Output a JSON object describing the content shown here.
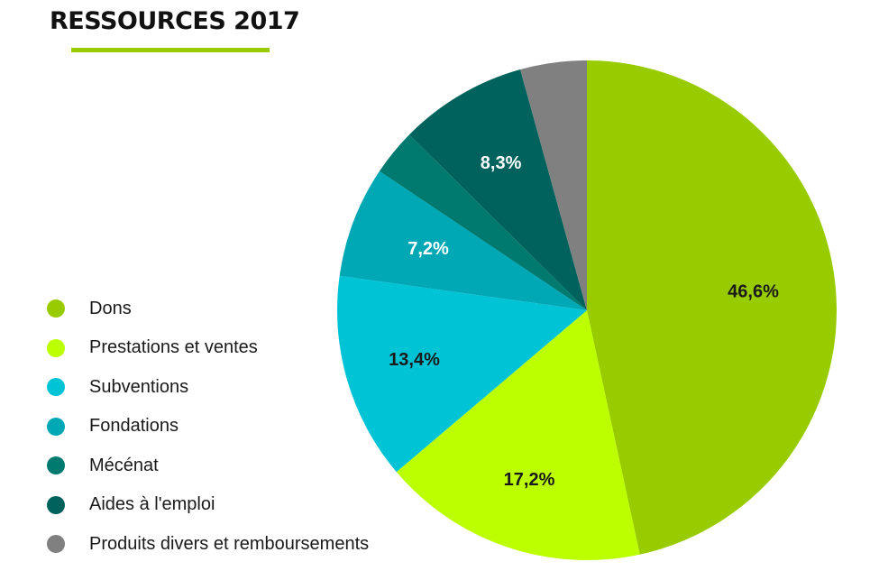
{
  "title": "RESSOURCES 2017",
  "chart_data": {
    "type": "pie",
    "title": "RESSOURCES 2017",
    "legend_position": "left",
    "slices": [
      {
        "label": "Dons",
        "value": 46.6,
        "display": "46,6%",
        "color": "#99cc00",
        "label_color": "#1a1a1a"
      },
      {
        "label": "Prestations et ventes",
        "value": 17.2,
        "display": "17,2%",
        "color": "#bbff00",
        "label_color": "#1a1a1a"
      },
      {
        "label": "Subventions",
        "value": 13.4,
        "display": "13,4%",
        "color": "#00c4d6",
        "label_color": "#1a1a1a"
      },
      {
        "label": "Fondations",
        "value": 7.2,
        "display": "7,2%",
        "color": "#00a7b5",
        "label_color": "#ffffff"
      },
      {
        "label": "Mécénat",
        "value": 3.0,
        "display": "",
        "color": "#007a6e",
        "label_color": "#ffffff"
      },
      {
        "label": "Aides à l'emploi",
        "value": 8.3,
        "display": "8,3%",
        "color": "#00625c",
        "label_color": "#ffffff"
      },
      {
        "label": "Produits divers et remboursements",
        "value": 4.3,
        "display": "",
        "color": "#808080",
        "label_color": "#ffffff"
      }
    ]
  }
}
